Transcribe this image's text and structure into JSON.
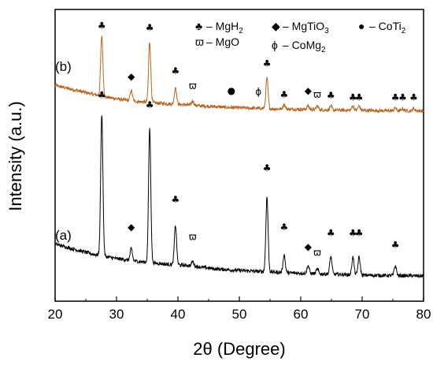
{
  "chart_data": {
    "type": "line",
    "xlabel": "2θ (Degree)",
    "ylabel": "Intensity (a.u.)",
    "xlim": [
      20,
      80
    ],
    "xticks": [
      "20",
      "30",
      "40",
      "50",
      "60",
      "70",
      "80"
    ],
    "grid": false,
    "legend_position": "top-right",
    "legend": [
      {
        "symbol": "♣",
        "text": "– MgH",
        "sub": "2"
      },
      {
        "symbol": "◆",
        "text": "– MgTiO",
        "sub": "3"
      },
      {
        "symbol": "●",
        "text": "– CoTi",
        "sub": "2"
      },
      {
        "symbol": "ϖ",
        "text": "– MgO",
        "sub": ""
      },
      {
        "symbol": "ϕ",
        "text": "– CoMg",
        "sub": "2"
      }
    ],
    "series": [
      {
        "name": "(b)",
        "color": "#b5651d",
        "baseline": [
          [
            20,
            0.7
          ],
          [
            24,
            0.55
          ],
          [
            28,
            0.4
          ],
          [
            32,
            0.3
          ],
          [
            36,
            0.24
          ],
          [
            40,
            0.2
          ],
          [
            44,
            0.16
          ],
          [
            48,
            0.12
          ],
          [
            52,
            0.1
          ],
          [
            56,
            0.08
          ],
          [
            60,
            0.07
          ],
          [
            65,
            0.05
          ],
          [
            70,
            0.04
          ],
          [
            75,
            0.03
          ],
          [
            80,
            0.03
          ]
        ],
        "peaks": [
          [
            27.6,
            1.6
          ],
          [
            32.4,
            0.28
          ],
          [
            35.4,
            1.6
          ],
          [
            39.6,
            0.45
          ],
          [
            42.4,
            0.12
          ],
          [
            54.5,
            0.8
          ],
          [
            57.3,
            0.12
          ],
          [
            61.2,
            0.1
          ],
          [
            62.7,
            0.1
          ],
          [
            64.9,
            0.1
          ],
          [
            68.5,
            0.12
          ],
          [
            69.5,
            0.12
          ],
          [
            75.4,
            0.08
          ],
          [
            76.6,
            0.06
          ],
          [
            78.4,
            0.06
          ]
        ],
        "markers": [
          {
            "x": 27.6,
            "level": 2.2,
            "symbol": "♣"
          },
          {
            "x": 32.4,
            "level": 0.85,
            "symbol": "◆"
          },
          {
            "x": 35.4,
            "level": 2.15,
            "symbol": "♣"
          },
          {
            "x": 39.6,
            "level": 1.0,
            "symbol": "♣"
          },
          {
            "x": 42.4,
            "level": 0.6,
            "symbol": "ϖ"
          },
          {
            "x": 48.7,
            "level": 0.48,
            "symbol": "●"
          },
          {
            "x": 53.1,
            "level": 0.45,
            "symbol": "ϕ"
          },
          {
            "x": 54.5,
            "level": 1.2,
            "symbol": "♣"
          },
          {
            "x": 57.3,
            "level": 0.38,
            "symbol": "♣"
          },
          {
            "x": 61.2,
            "level": 0.48,
            "symbol": "◆"
          },
          {
            "x": 62.7,
            "level": 0.38,
            "symbol": "ϖ"
          },
          {
            "x": 64.9,
            "level": 0.35,
            "symbol": "♣"
          },
          {
            "x": 68.5,
            "level": 0.3,
            "symbol": "♣"
          },
          {
            "x": 69.5,
            "level": 0.3,
            "symbol": "♣"
          },
          {
            "x": 75.4,
            "level": 0.3,
            "symbol": "♣"
          },
          {
            "x": 76.6,
            "level": 0.3,
            "symbol": "♣"
          },
          {
            "x": 78.4,
            "level": 0.3,
            "symbol": "♣"
          }
        ]
      },
      {
        "name": "(a)",
        "color": "#000000",
        "baseline": [
          [
            20,
            0.85
          ],
          [
            23,
            0.72
          ],
          [
            26,
            0.6
          ],
          [
            30,
            0.48
          ],
          [
            34,
            0.4
          ],
          [
            38,
            0.34
          ],
          [
            42,
            0.3
          ],
          [
            46,
            0.22
          ],
          [
            50,
            0.18
          ],
          [
            54,
            0.15
          ],
          [
            58,
            0.12
          ],
          [
            62,
            0.1
          ],
          [
            66,
            0.08
          ],
          [
            70,
            0.06
          ],
          [
            75,
            0.05
          ],
          [
            80,
            0.04
          ]
        ],
        "peaks": [
          [
            27.6,
            3.6
          ],
          [
            32.4,
            0.3
          ],
          [
            35.4,
            3.4
          ],
          [
            39.6,
            1.0
          ],
          [
            42.4,
            0.12
          ],
          [
            54.5,
            1.9
          ],
          [
            57.3,
            0.45
          ],
          [
            61.2,
            0.2
          ],
          [
            62.7,
            0.12
          ],
          [
            64.9,
            0.45
          ],
          [
            68.5,
            0.45
          ],
          [
            69.5,
            0.45
          ],
          [
            75.4,
            0.25
          ]
        ],
        "markers": [
          {
            "x": 27.6,
            "level": 4.55,
            "symbol": "♣"
          },
          {
            "x": 32.4,
            "level": 1.2,
            "symbol": "◆"
          },
          {
            "x": 35.4,
            "level": 4.3,
            "symbol": "♣"
          },
          {
            "x": 39.6,
            "level": 1.9,
            "symbol": "♣"
          },
          {
            "x": 42.4,
            "level": 0.95,
            "symbol": "ϖ"
          },
          {
            "x": 54.5,
            "level": 2.7,
            "symbol": "♣"
          },
          {
            "x": 57.3,
            "level": 1.2,
            "symbol": "♣"
          },
          {
            "x": 61.2,
            "level": 0.7,
            "symbol": "◆"
          },
          {
            "x": 62.7,
            "level": 0.55,
            "symbol": "ϖ"
          },
          {
            "x": 64.9,
            "level": 1.05,
            "symbol": "♣"
          },
          {
            "x": 68.5,
            "level": 1.05,
            "symbol": "♣"
          },
          {
            "x": 69.5,
            "level": 1.05,
            "symbol": "♣"
          },
          {
            "x": 75.4,
            "level": 0.75,
            "symbol": "♣"
          }
        ]
      }
    ]
  }
}
